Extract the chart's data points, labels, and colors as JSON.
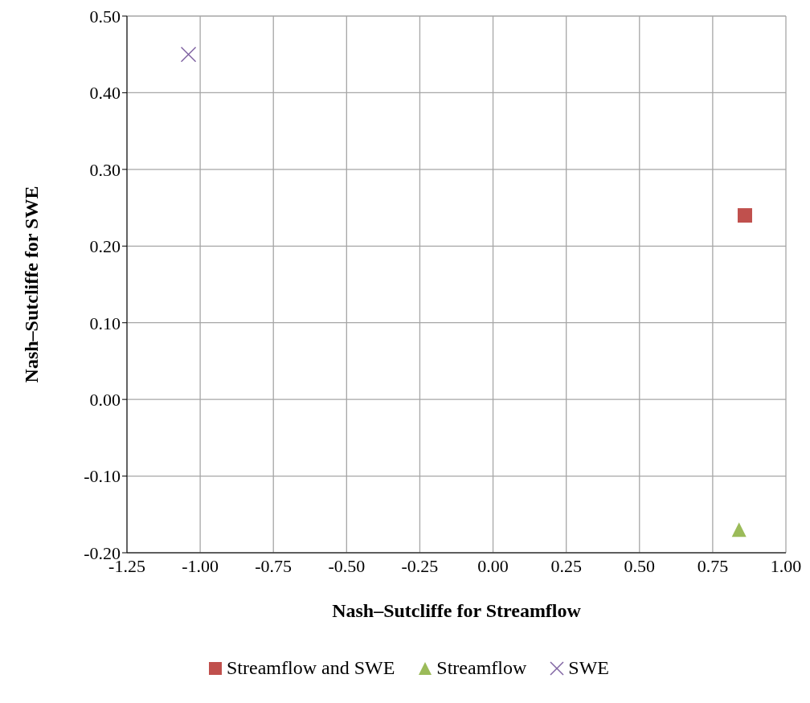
{
  "chart_data": {
    "type": "scatter",
    "xlabel": "Nash–Sutcliffe for Streamflow",
    "ylabel": "Nash–Sutcliffe for SWE",
    "series": [
      {
        "name": "Streamflow and SWE",
        "color": "#c0504d",
        "marker": "square",
        "x": [
          0.86
        ],
        "values": [
          0.24
        ]
      },
      {
        "name": "Streamflow",
        "color": "#9bbb59",
        "marker": "triangle",
        "x": [
          0.84
        ],
        "values": [
          -0.17
        ]
      },
      {
        "name": "SWE",
        "color": "#8064a2",
        "marker": "cross",
        "x": [
          -1.04
        ],
        "values": [
          0.45
        ]
      }
    ],
    "xlim": [
      -1.25,
      1.0
    ],
    "xticks": [
      {
        "value": -1.25,
        "label": "-1.25"
      },
      {
        "value": -1.0,
        "label": "-1.00"
      },
      {
        "value": -0.75,
        "label": "-0.75"
      },
      {
        "value": -0.5,
        "label": "-0.50"
      },
      {
        "value": -0.25,
        "label": "-0.25"
      },
      {
        "value": 0,
        "label": "0.00"
      },
      {
        "value": 0.25,
        "label": "0.25"
      },
      {
        "value": 0.5,
        "label": "0.50"
      },
      {
        "value": 0.75,
        "label": "0.75"
      },
      {
        "value": 1.0,
        "label": "1.00"
      }
    ],
    "ylim": [
      -0.2,
      0.5
    ],
    "yticks": [
      {
        "value": -0.2,
        "label": "-0.20"
      },
      {
        "value": -0.1,
        "label": "-0.10"
      },
      {
        "value": 0,
        "label": "0.00"
      },
      {
        "value": 0.1,
        "label": "0.10"
      },
      {
        "value": 0.2,
        "label": "0.20"
      },
      {
        "value": 0.3,
        "label": "0.30"
      },
      {
        "value": 0.4,
        "label": "0.40"
      },
      {
        "value": 0.5,
        "label": "0.50"
      }
    ],
    "grid": true,
    "legend": "bottom"
  }
}
